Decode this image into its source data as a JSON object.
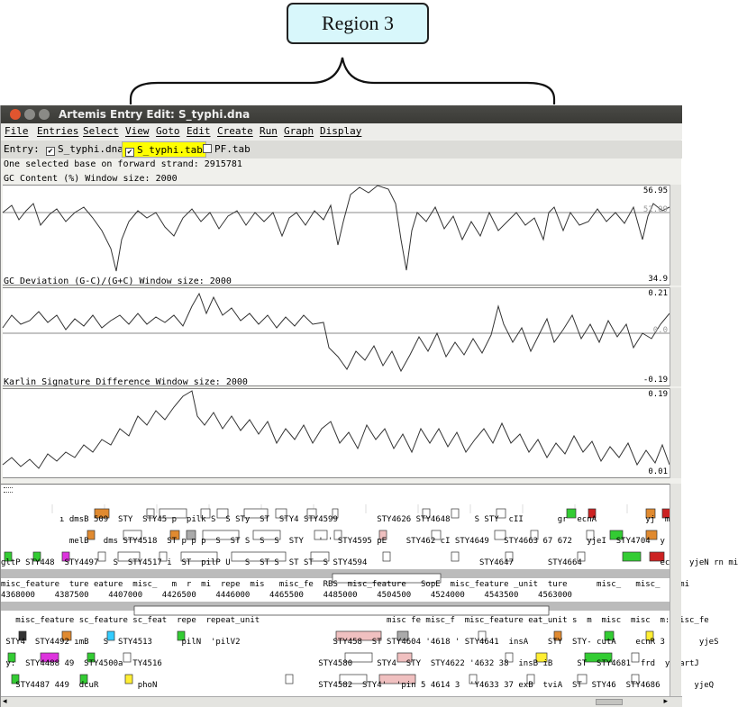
{
  "annotation": {
    "region_label": "Region 3"
  },
  "window": {
    "title": "Artemis Entry Edit: S_typhi.dna"
  },
  "menu": [
    "File",
    "Entries",
    "Select",
    "View",
    "Goto",
    "Edit",
    "Create",
    "Run",
    "Graph",
    "Display"
  ],
  "entries": {
    "label": "Entry:",
    "items": [
      {
        "name": "S_typhi.dna",
        "checked": true,
        "highlight": false
      },
      {
        "name": "S_typhi.tab",
        "checked": true,
        "highlight": true
      },
      {
        "name": "PF.tab",
        "checked": false,
        "highlight": false
      }
    ]
  },
  "selection_info": "One selected base on forward strand: 2915781",
  "plots": {
    "gc_content": {
      "label": "GC Content (%)  Window size: 2000",
      "max": "56.95",
      "mid": "52.09",
      "min": "34.9"
    },
    "gc_deviation": {
      "label": "GC Deviation (G-C)/(G+C)  Window size: 2000",
      "max": "0.21",
      "mid": "0.0",
      "min": "-0.19"
    },
    "karlin": {
      "label": "Karlin Signature Difference  Window size: 2000",
      "max": "0.19",
      "min": "0.01"
    }
  },
  "feature_rows": {
    "f1": "            ı dmsB 509  STY  STY45 p  pilk S  S STy  ST  STY4 STY4599        STY4626 STY4648     S STY  cII       gr  ecnA          yj  m",
    "f2": "              melB   dms STY4518  ST p p p  S  ST S  S  S  STY   ' ' STY4595 pE    STY462 cI STY4649   STY4663 67 672   yjeI  STY4704  y  ",
    "f3": "gltP STY448  STY4497   S  STY4517 i  ST  pilP U   S  ST S  ST ST  S STY4594                       STY4647       STY4664                ecnE  yjeN rn mi",
    "scale": "4368000    4387500    4407000    4426500    4446000    4465500    4485000    4504500    4524000    4543500    4563000",
    "scale_labels": "misc_feature  ture eature  misc_   m  r  mi  repe  mis   misc_fe  RBS  misc_feature   SopE  misc_feature _unit  ture      misc_   misc_    mi",
    "r1": "   misc_feature sc_feature sc_feat  repe  repeat_unit                          misc fe misc_f  misc_feature eat_unit s  m  misc  misc  m: misc_fe",
    "r2": " STY4  STY4492 ımB   S  STY4513      pilN  'pilV2                   STY458  ST STY4604 '4618 ' STY4641  insA    STY  STY- cutA    ecnR 3       yjeS",
    "r3": " y:  STY4488 49  STY4500a  TY4516                                STY4580     STY4  STY  STY4622 '4632 38  insB iB     ST  STY4681  frd  y  artJ",
    "r4": "   STY4487 449  dcuR        phoN                                 STY4582  STY4'  'pin 5 4614 3  'Y4633 37 exB  tviA  ST  STY46  STY4686  dC   yjeQ"
  }
}
